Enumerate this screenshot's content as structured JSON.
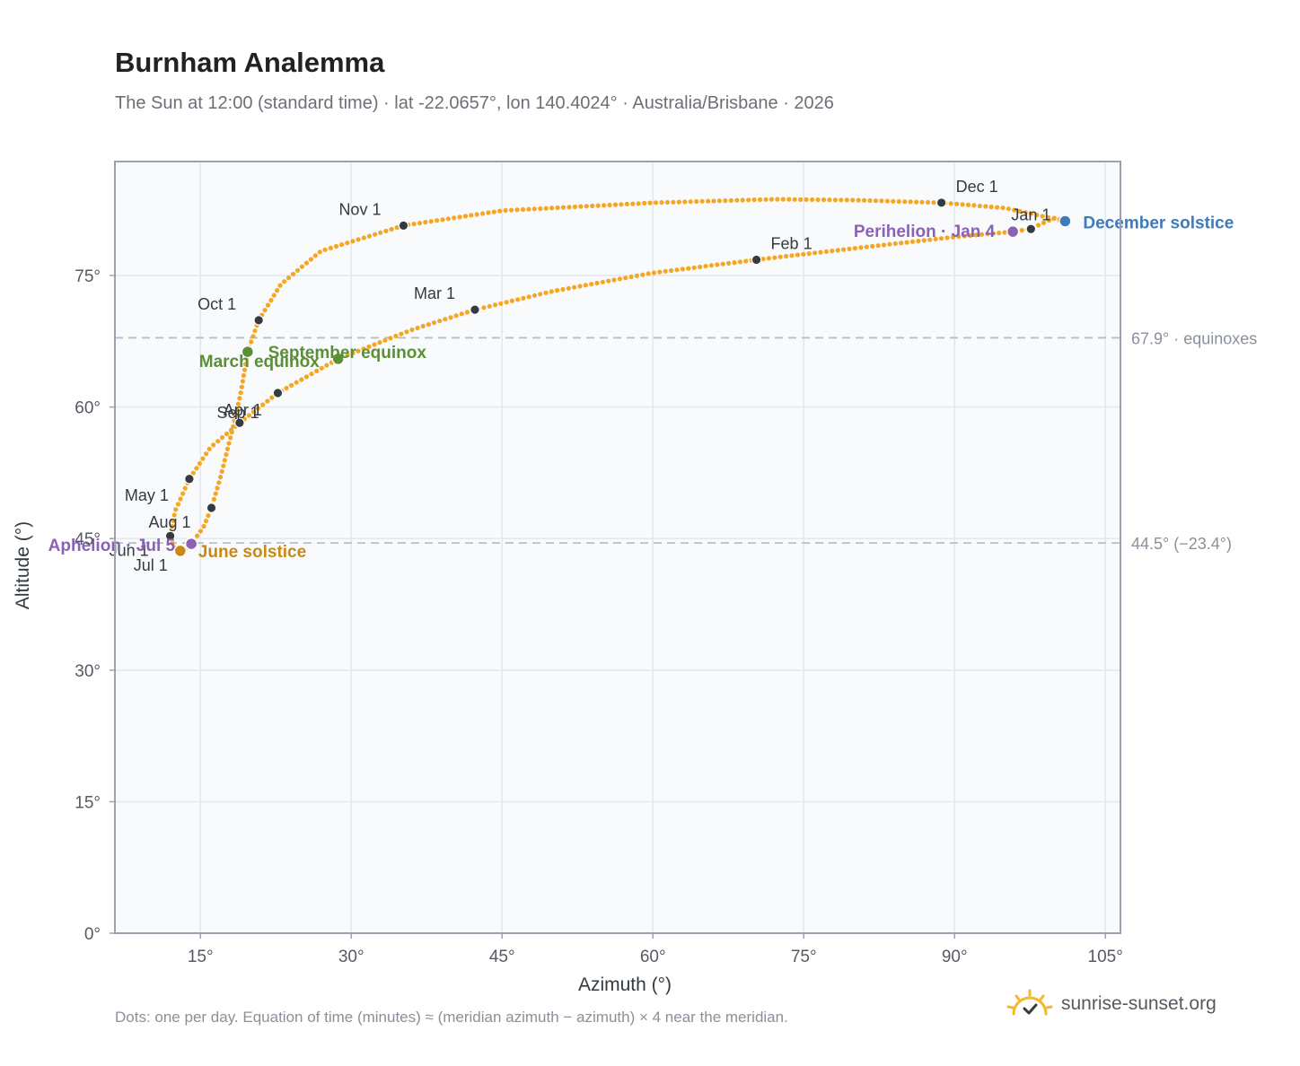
{
  "header": {
    "title": "Burnham Analemma",
    "subtitle": "The Sun at 12:00 (standard time) · lat -22.0657°, lon 140.4024° · Australia/Brisbane · 2026"
  },
  "footer": {
    "note": "Dots: one per day. Equation of time (minutes) ≈ (meridian azimuth − azimuth) × 4 near the meridian.",
    "brand": "sunrise-sunset.org",
    "brand_icon": "sunrise-logo-icon"
  },
  "chart_data": {
    "type": "scatter",
    "xlabel": "Azimuth (°)",
    "ylabel": "Altitude (°)",
    "xlim": [
      6.5,
      106.5
    ],
    "ylim": [
      0,
      88
    ],
    "xticks": [
      15,
      30,
      45,
      60,
      75,
      90,
      105
    ],
    "yticks": [
      0,
      15,
      30,
      45,
      60,
      75
    ],
    "tick_suffix": "°",
    "grid": true,
    "colors": {
      "path": "#f5a623",
      "month": "#333a40",
      "equinox": "#5a8f36",
      "june": "#c88a12",
      "december": "#3d7bbf",
      "apsis": "#8a62b4",
      "ref": "#b8bec7"
    },
    "reference_lines": [
      {
        "y": 67.9,
        "label": "67.9° · equinoxes"
      },
      {
        "y": 44.5,
        "label": "44.5° (−23.4°)"
      }
    ],
    "path": {
      "name": "",
      "points": [
        [
          101.0,
          81.2
        ],
        [
          100.0,
          81.6
        ],
        [
          97.5,
          80.3
        ],
        [
          95.8,
          80.0
        ],
        [
          90.0,
          79.4
        ],
        [
          80.0,
          78.1
        ],
        [
          70.3,
          76.8
        ],
        [
          60.0,
          75.3
        ],
        [
          50.0,
          73.2
        ],
        [
          42.3,
          71.1
        ],
        [
          36.0,
          68.8
        ],
        [
          28.7,
          65.5
        ],
        [
          22.7,
          61.6
        ],
        [
          18.9,
          58.2
        ],
        [
          18.0,
          57.3
        ],
        [
          16.0,
          55.4
        ],
        [
          13.9,
          51.8
        ],
        [
          12.5,
          48.2
        ],
        [
          12.0,
          45.3
        ],
        [
          12.3,
          44.2
        ],
        [
          12.8,
          43.6
        ],
        [
          13.5,
          43.9
        ],
        [
          14.1,
          44.4
        ],
        [
          15.3,
          46.3
        ],
        [
          16.1,
          48.5
        ],
        [
          17.0,
          52.0
        ],
        [
          18.2,
          57.5
        ],
        [
          19.0,
          61.5
        ],
        [
          19.7,
          66.3
        ],
        [
          20.8,
          69.9
        ],
        [
          23.0,
          74.0
        ],
        [
          27.0,
          77.8
        ],
        [
          35.2,
          80.7
        ],
        [
          45.0,
          82.4
        ],
        [
          60.0,
          83.3
        ],
        [
          72.0,
          83.7
        ],
        [
          80.0,
          83.6
        ],
        [
          88.7,
          83.3
        ],
        [
          95.0,
          82.7
        ],
        [
          101.0,
          81.2
        ]
      ]
    },
    "month_markers": [
      {
        "label": "Jan 1",
        "x": 97.6,
        "y": 80.3
      },
      {
        "label": "Feb 1",
        "x": 70.3,
        "y": 76.8
      },
      {
        "label": "Mar 1",
        "x": 42.3,
        "y": 71.1
      },
      {
        "label": "Apr 1",
        "x": 18.9,
        "y": 58.2
      },
      {
        "label": "May 1",
        "x": 13.9,
        "y": 51.8
      },
      {
        "label": "Jun 1",
        "x": 12.0,
        "y": 45.3
      },
      {
        "label": "Jul 1",
        "x": 13.0,
        "y": 43.6
      },
      {
        "label": "Aug 1",
        "x": 16.1,
        "y": 48.5
      },
      {
        "label": "Sep 1",
        "x": 22.7,
        "y": 61.6
      },
      {
        "label": "Oct 1",
        "x": 20.8,
        "y": 69.9
      },
      {
        "label": "Nov 1",
        "x": 35.2,
        "y": 80.7
      },
      {
        "label": "Dec 1",
        "x": 88.7,
        "y": 83.3
      }
    ],
    "events": [
      {
        "label": "December solstice",
        "x": 101.0,
        "y": 81.2,
        "color_key": "december"
      },
      {
        "label": "Perihelion · Jan 4",
        "x": 95.8,
        "y": 80.0,
        "color_key": "apsis"
      },
      {
        "label": "March equinox",
        "x": 19.7,
        "y": 66.3,
        "color_key": "equinox"
      },
      {
        "label": "September equinox",
        "x": 28.7,
        "y": 65.5,
        "color_key": "equinox"
      },
      {
        "label": "June solstice",
        "x": 13.0,
        "y": 43.6,
        "color_key": "june"
      },
      {
        "label": "Aphelion · Jul 5",
        "x": 14.1,
        "y": 44.4,
        "color_key": "apsis"
      }
    ]
  }
}
